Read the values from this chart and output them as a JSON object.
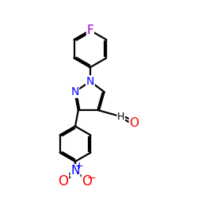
{
  "background_color": "#ffffff",
  "atom_colors": {
    "C": "#000000",
    "N": "#0000ff",
    "O": "#ff0000",
    "F": "#9900cc",
    "H": "#000000"
  },
  "bond_color": "#000000",
  "bond_width": 1.6,
  "font_size_atoms": 10,
  "figsize": [
    2.5,
    2.5
  ],
  "dpi": 100,
  "xlim": [
    2.5,
    9.5
  ],
  "ylim": [
    0.5,
    11.5
  ]
}
